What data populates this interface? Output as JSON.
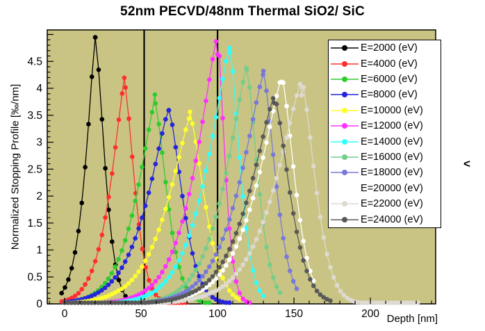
{
  "title": "52nm PECVD/48nm Thermal SiO2/ SiC",
  "stray_char": "<",
  "chart_data": {
    "type": "line",
    "title": "52nm PECVD/48nm Thermal SiO2/ SiC",
    "xlabel": "Depth [nm]",
    "ylabel": "Normalized Stopping Profile [‰/nm]",
    "xlim": [
      -11.4,
      242.7
    ],
    "ylim": [
      0,
      5.084
    ],
    "x_major_ticks": [
      0,
      50,
      100,
      150,
      200
    ],
    "x_tick_labels": [
      "0",
      "50",
      "100",
      "150",
      "200"
    ],
    "x_minor_step_nm": 10,
    "y_major_ticks": [
      0,
      0.5,
      1,
      1.5,
      2,
      2.5,
      3,
      3.5,
      4,
      4.5
    ],
    "y_tick_labels": [
      "0",
      "0.5",
      "1",
      "1.5",
      "2",
      "2.5",
      "3",
      "3.5",
      "4",
      "4.5"
    ],
    "y_minor_step": 0.1,
    "grid": false,
    "plot_bg": "#c9c483",
    "outer_bg": "#ffffff",
    "axis_color": "#000000",
    "interface_lines_nm": [
      52,
      100
    ],
    "legend_position": "top-right",
    "marker_step_nm": 2.2,
    "marker_style": "filled-circle",
    "series": [
      {
        "name": "E=2000 (eV)",
        "color": "#000000",
        "peak_nm": 20,
        "peak_value": 4.78,
        "sigma_left": 5.3,
        "sigma_right": 5.4,
        "onset_nm": -2,
        "end_nm": 46
      },
      {
        "name": "E=4000 (eV)",
        "color": "#ff2e2e",
        "peak_nm": 39,
        "peak_value": 4.1,
        "sigma_left": 7.5,
        "sigma_right": 6.0,
        "onset_nm": -2,
        "end_nm": 80
      },
      {
        "name": "E=6000 (eV)",
        "color": "#2ecc2e",
        "peak_nm": 59,
        "peak_value": 3.85,
        "sigma_left": 10,
        "sigma_right": 7.0,
        "onset_nm": 0,
        "end_nm": 95
      },
      {
        "name": "E=8000 (eV)",
        "color": "#2424dc",
        "peak_nm": 68,
        "peak_value": 3.72,
        "sigma_left": 12,
        "sigma_right": 8.0,
        "onset_nm": 0,
        "end_nm": 108
      },
      {
        "name": "E=10000 (eV)",
        "color": "#ffff2e",
        "peak_nm": 82,
        "peak_value": 3.45,
        "sigma_left": 13,
        "sigma_right": 8.5,
        "onset_nm": 0,
        "end_nm": 116
      },
      {
        "name": "E=12000 (eV)",
        "color": "#ff30ff",
        "peak_nm": 100,
        "peak_value": 4.8,
        "sigma_left": 12,
        "sigma_right": 4.2,
        "onset_nm": 0,
        "end_nm": 122
      },
      {
        "name": "E=14000 (eV)",
        "color": "#30ffff",
        "peak_nm": 108,
        "peak_value": 4.7,
        "sigma_left": 12.4,
        "sigma_right": 6.0,
        "onset_nm": 0,
        "end_nm": 130
      },
      {
        "name": "E=16000 (eV)",
        "color": "#74cd8a",
        "peak_nm": 119,
        "peak_value": 4.5,
        "sigma_left": 11.5,
        "sigma_right": 6.5,
        "onset_nm": 0,
        "end_nm": 142
      },
      {
        "name": "E=18000 (eV)",
        "color": "#7878dc",
        "peak_nm": 130,
        "peak_value": 4.4,
        "sigma_left": 13,
        "sigma_right": 7.0,
        "onset_nm": 0,
        "end_nm": 153
      },
      {
        "name": "E=20000 (eV)",
        "color": "#ffffff",
        "peak_nm": 142,
        "peak_value": 4.18,
        "sigma_left": 14,
        "sigma_right": 7.5,
        "onset_nm": 0,
        "end_nm": 164
      },
      {
        "name": "E=22000 (eV)",
        "color": "#dedad2",
        "peak_nm": 155,
        "peak_value": 4.0,
        "sigma_left": 15,
        "sigma_right": 8.0,
        "onset_nm": 0,
        "end_nm": 231
      },
      {
        "name": "E=24000 (eV)",
        "color": "#585858",
        "peak_nm": 137,
        "peak_value": 3.72,
        "sigma_left": 14,
        "sigma_right": 9.0,
        "onset_nm": 0,
        "end_nm": 174
      }
    ]
  }
}
